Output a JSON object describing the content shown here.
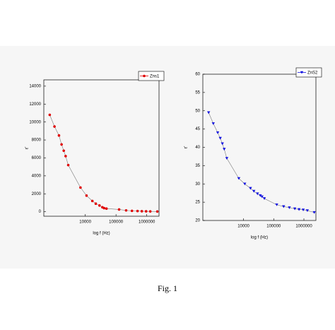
{
  "chart_data": [
    {
      "type": "line",
      "x_label": "log f (Hz)",
      "y_label": "ε'",
      "log_x": true,
      "x": [
        700,
        1000,
        1400,
        1700,
        2000,
        2300,
        2800,
        7000,
        11000,
        17000,
        22000,
        29000,
        36000,
        41000,
        49000,
        126000,
        213000,
        330000,
        500000,
        690000,
        950000,
        1300000,
        2200000
      ],
      "series": [
        {
          "name": "Zns1",
          "color": "#e00000",
          "marker": "circle",
          "values": [
            10800,
            9500,
            8500,
            7500,
            6800,
            6200,
            5200,
            2700,
            1800,
            1200,
            900,
            700,
            500,
            400,
            350,
            250,
            150,
            100,
            80,
            60,
            50,
            40,
            30
          ]
        }
      ],
      "xlim": [
        450,
        2500000
      ],
      "xticks": [
        10000,
        100000,
        1000000
      ],
      "ylim": [
        -500,
        14700
      ],
      "yticks": [
        0,
        2000,
        4000,
        6000,
        8000,
        10000,
        12000,
        14000
      ]
    },
    {
      "type": "line",
      "x_label": "log f (Hz)",
      "y_label": "ε'",
      "log_x": true,
      "x": [
        700,
        1000,
        1400,
        1700,
        2000,
        2300,
        2800,
        7000,
        11000,
        17000,
        22000,
        29000,
        36000,
        41000,
        49000,
        126000,
        213000,
        330000,
        500000,
        690000,
        950000,
        1300000,
        2200000
      ],
      "series": [
        {
          "name": "ZnS2",
          "color": "#1010e0",
          "marker": "triangle-down",
          "values": [
            49.5,
            46.5,
            44,
            42.5,
            41,
            39.5,
            37,
            31.5,
            30,
            28.8,
            28,
            27.3,
            26.8,
            26.5,
            26,
            24.3,
            23.8,
            23.5,
            23.2,
            23,
            22.9,
            22.7,
            22.2
          ]
        }
      ],
      "xlim": [
        450,
        2500000
      ],
      "xticks": [
        10000,
        100000,
        1000000
      ],
      "ylim": [
        20,
        60
      ],
      "yticks": [
        20,
        25,
        30,
        35,
        40,
        45,
        50,
        55,
        60
      ]
    }
  ],
  "caption": "Fig. 1"
}
